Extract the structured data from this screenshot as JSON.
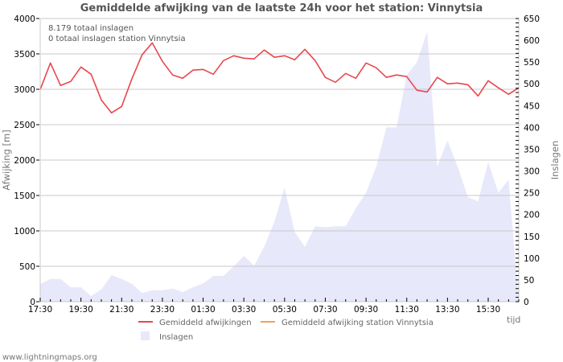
{
  "title": "Gemiddelde afwijking van de laatste 24h voor het station: Vinnytsia",
  "info": {
    "line1": "8.179 totaal inslagen",
    "line2": "0 totaal inslagen station Vinnytsia"
  },
  "left_axis": {
    "label": "Afwijking  [m]",
    "ticks": [
      "0",
      "500",
      "1000",
      "1500",
      "2000",
      "2500",
      "3000",
      "3500",
      "4000"
    ]
  },
  "right_axis": {
    "label": "Inslagen",
    "ticks": [
      "0",
      "50",
      "100",
      "150",
      "200",
      "250",
      "300",
      "350",
      "400",
      "450",
      "500",
      "550",
      "600",
      "650"
    ]
  },
  "x_axis": {
    "label": "tijd",
    "ticks": [
      "17:30",
      "19:30",
      "21:30",
      "23:30",
      "01:30",
      "03:30",
      "05:30",
      "07:30",
      "09:30",
      "11:30",
      "13:30",
      "15:30"
    ]
  },
  "legend": {
    "items": [
      {
        "label": "Gemiddeld afwijkingen",
        "color": "#e8474c"
      },
      {
        "label": "Gemiddeld afwijking station Vinnytsia",
        "color": "#f5a05a"
      },
      {
        "label": "Inslagen",
        "color": "#e8e8fb"
      }
    ]
  },
  "footer": "www.lightningmaps.org",
  "colors": {
    "line": "#e8474c",
    "area": "#e8e8fb",
    "grid": "#c8c8c8"
  },
  "chart_data": {
    "type": "line",
    "title": "Gemiddelde afwijking van de laatste 24h voor het station: Vinnytsia",
    "xlabel": "tijd",
    "ylabel": "Afwijking  [m]",
    "y2label": "Inslagen",
    "ylim": [
      0,
      4000
    ],
    "y2lim": [
      0,
      650
    ],
    "grid": true,
    "legend_position": "bottom",
    "x": [
      "17:30",
      "18:00",
      "18:30",
      "19:00",
      "19:30",
      "20:00",
      "20:30",
      "21:00",
      "21:30",
      "22:00",
      "22:30",
      "23:00",
      "23:30",
      "00:00",
      "00:30",
      "01:00",
      "01:30",
      "02:00",
      "02:30",
      "03:00",
      "03:30",
      "04:00",
      "04:30",
      "05:00",
      "05:30",
      "06:00",
      "06:30",
      "07:00",
      "07:30",
      "08:00",
      "08:30",
      "09:00",
      "09:30",
      "10:00",
      "10:30",
      "11:00",
      "11:30",
      "12:00",
      "12:30",
      "13:00",
      "13:30",
      "14:00",
      "14:30",
      "15:00",
      "15:30",
      "16:00",
      "16:30",
      "17:00"
    ],
    "series": [
      {
        "name": "Gemiddeld afwijkingen",
        "axis": "left",
        "type": "line",
        "values": [
          2997,
          3372,
          3054,
          3111,
          3315,
          3213,
          2849,
          2667,
          2758,
          3145,
          3486,
          3656,
          3395,
          3202,
          3156,
          3270,
          3281,
          3213,
          3406,
          3474,
          3440,
          3429,
          3554,
          3452,
          3474,
          3418,
          3565,
          3406,
          3168,
          3099,
          3224,
          3156,
          3372,
          3304,
          3168,
          3202,
          3179,
          2986,
          2963,
          3168,
          3077,
          3088,
          3065,
          2906,
          3122,
          3020,
          2929,
          3020
        ]
      },
      {
        "name": "Gemiddeld afwijking station Vinnytsia",
        "axis": "left",
        "type": "line",
        "values": []
      },
      {
        "name": "Inslagen",
        "axis": "right",
        "type": "area",
        "values": [
          40,
          52,
          52,
          33,
          33,
          13,
          28,
          61,
          52,
          41,
          20,
          26,
          26,
          30,
          22,
          33,
          42,
          59,
          59,
          81,
          105,
          83,
          126,
          184,
          262,
          160,
          125,
          173,
          171,
          173,
          173,
          214,
          250,
          310,
          400,
          400,
          520,
          550,
          620,
          310,
          370,
          310,
          240,
          230,
          320,
          250,
          280,
          0
        ]
      }
    ]
  }
}
